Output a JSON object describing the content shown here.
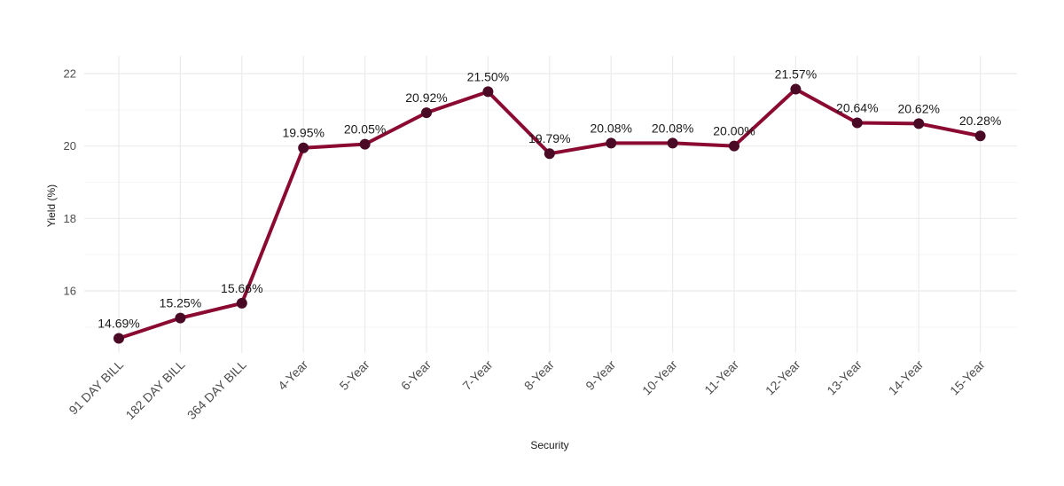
{
  "chart_data": {
    "type": "line",
    "title": "",
    "xlabel": "Security",
    "ylabel": "Yield (%)",
    "categories": [
      "91 DAY BILL",
      "182 DAY BILL",
      "364 DAY BILL",
      "4-Year",
      "5-Year",
      "6-Year",
      "7-Year",
      "8-Year",
      "9-Year",
      "10-Year",
      "11-Year",
      "12-Year",
      "13-Year",
      "14-Year",
      "15-Year"
    ],
    "values": [
      14.69,
      15.25,
      15.66,
      19.95,
      20.05,
      20.92,
      21.5,
      19.79,
      20.08,
      20.08,
      20.0,
      21.57,
      20.64,
      20.62,
      20.28
    ],
    "data_labels": [
      "14.69%",
      "15.25%",
      "15.66%",
      "19.95%",
      "20.05%",
      "20.92%",
      "21.50%",
      "19.79%",
      "20.08%",
      "20.08%",
      "20.00%",
      "21.57%",
      "20.64%",
      "20.62%",
      "20.28%"
    ],
    "y_ticks": [
      16,
      18,
      20,
      22
    ],
    "y_tick_labels": [
      "16",
      "18",
      "20",
      "22"
    ],
    "ylim": [
      14.4,
      22.4
    ],
    "grid": true,
    "legend": "none",
    "colors": {
      "line": "#8b0a32",
      "point": "#4a0a26",
      "grid_major": "#ebebeb",
      "grid_minor": "#f5f5f5"
    }
  }
}
